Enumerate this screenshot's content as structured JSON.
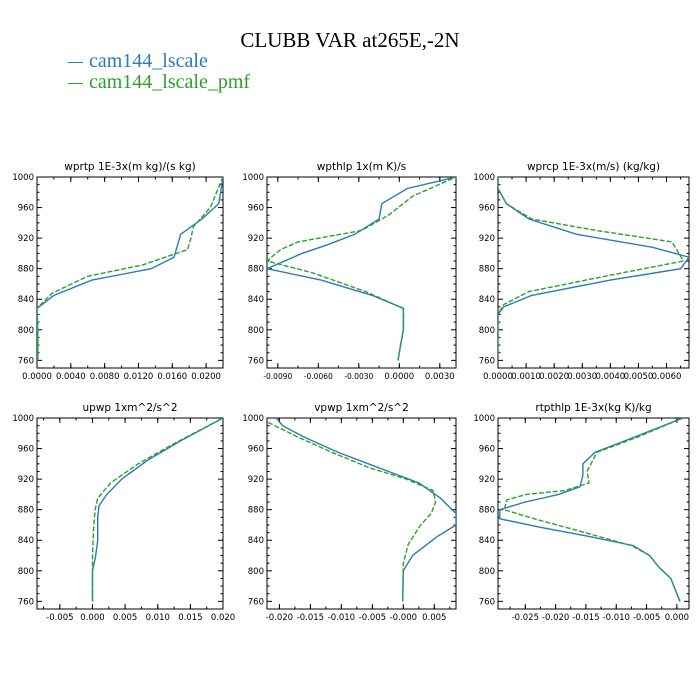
{
  "title": "CLUBB VAR at265E,-2N",
  "legend": [
    {
      "label": "cam144_lscale",
      "color": "#2b7bb9"
    },
    {
      "label": "cam144_lscale_pmf",
      "color": "#2ca02c"
    }
  ],
  "chart_data": [
    {
      "type": "line",
      "title": "wprtp   1E-3x(m kg)/(s kg)",
      "xlim": [
        0,
        0.022
      ],
      "ylim": [
        1000,
        750
      ],
      "xticks": [
        0,
        0.004,
        0.008,
        0.012,
        0.016,
        0.02
      ],
      "xtick_labels": [
        "0.0000",
        "0.0040",
        "0.0080",
        "0.0120",
        "0.0160",
        "0.0200"
      ],
      "yticks": [
        760,
        800,
        840,
        880,
        920,
        960,
        1000
      ],
      "series": [
        {
          "name": "cam144_lscale",
          "points": [
            [
              0.0001,
              760
            ],
            [
              0.0001,
              800
            ],
            [
              0,
              828
            ],
            [
              0.002,
              845
            ],
            [
              0.0065,
              865
            ],
            [
              0.0135,
              880
            ],
            [
              0.0162,
              895
            ],
            [
              0.017,
              925
            ],
            [
              0.0195,
              945
            ],
            [
              0.0215,
              965
            ],
            [
              0.022,
              1000
            ]
          ]
        },
        {
          "name": "cam144_lscale_pmf",
          "points": [
            [
              0.0001,
              760
            ],
            [
              0.0001,
              800
            ],
            [
              0,
              828
            ],
            [
              0.0018,
              848
            ],
            [
              0.006,
              870
            ],
            [
              0.0125,
              885
            ],
            [
              0.0178,
              905
            ],
            [
              0.0182,
              920
            ],
            [
              0.0185,
              935
            ],
            [
              0.0205,
              960
            ],
            [
              0.022,
              1000
            ]
          ]
        }
      ]
    },
    {
      "type": "line",
      "title": "wpthlp   1x(m K)/s",
      "xlim": [
        -0.0098,
        0.0042
      ],
      "ylim": [
        1000,
        750
      ],
      "xticks": [
        -0.009,
        -0.006,
        -0.003,
        0.0,
        0.003
      ],
      "xtick_labels": [
        "-0.0090",
        "-0.0060",
        "-0.0030",
        "0.0000",
        "0.0030"
      ],
      "yticks": [
        760,
        800,
        840,
        880,
        920,
        960,
        1000
      ],
      "series": [
        {
          "name": "cam144_lscale",
          "points": [
            [
              -0.0001,
              760
            ],
            [
              0.0001,
              780
            ],
            [
              0.0003,
              800
            ],
            [
              0.0003,
              828
            ],
            [
              -0.002,
              845
            ],
            [
              -0.0058,
              865
            ],
            [
              -0.0098,
              880
            ],
            [
              -0.0072,
              900
            ],
            [
              -0.0052,
              912
            ],
            [
              -0.0033,
              925
            ],
            [
              -0.0015,
              945
            ],
            [
              -0.0013,
              965
            ],
            [
              0.0006,
              985
            ],
            [
              0.0042,
              1000
            ]
          ]
        },
        {
          "name": "cam144_lscale_pmf",
          "points": [
            [
              -0.0001,
              760
            ],
            [
              0.0001,
              780
            ],
            [
              0.0003,
              800
            ],
            [
              0.0003,
              828
            ],
            [
              -0.0025,
              850
            ],
            [
              -0.0065,
              875
            ],
            [
              -0.0098,
              890
            ],
            [
              -0.0088,
              905
            ],
            [
              -0.0075,
              915
            ],
            [
              -0.0028,
              930
            ],
            [
              -0.0008,
              950
            ],
            [
              0.001,
              975
            ],
            [
              0.0042,
              1000
            ]
          ]
        }
      ]
    },
    {
      "type": "line",
      "title": "wprcp   1E-3x(m/s) (kg/kg)",
      "xlim": [
        0,
        0.0068
      ],
      "ylim": [
        1000,
        750
      ],
      "xticks": [
        0,
        0.001,
        0.002,
        0.003,
        0.004,
        0.005,
        0.006
      ],
      "xtick_labels": [
        "0.0000",
        "0.0010",
        "0.0020",
        "0.0030",
        "0.0040",
        "0.0050",
        "0.0060"
      ],
      "yticks": [
        760,
        800,
        840,
        880,
        920,
        960,
        1000
      ],
      "series": [
        {
          "name": "cam144_lscale",
          "points": [
            [
              0,
              760
            ],
            [
              0,
              820
            ],
            [
              0.0002,
              830
            ],
            [
              0.0012,
              845
            ],
            [
              0.004,
              865
            ],
            [
              0.0065,
              880
            ],
            [
              0.0068,
              895
            ],
            [
              0.0055,
              908
            ],
            [
              0.0028,
              925
            ],
            [
              0.0011,
              945
            ],
            [
              0.0003,
              965
            ],
            [
              0,
              985
            ],
            [
              0,
              1000
            ]
          ]
        },
        {
          "name": "cam144_lscale_pmf",
          "points": [
            [
              0,
              760
            ],
            [
              0,
              820
            ],
            [
              0.0002,
              833
            ],
            [
              0.0011,
              850
            ],
            [
              0.0038,
              870
            ],
            [
              0.0066,
              890
            ],
            [
              0.0062,
              915
            ],
            [
              0.0035,
              930
            ],
            [
              0.0012,
              945
            ],
            [
              0.0003,
              965
            ],
            [
              0,
              985
            ],
            [
              0,
              1000
            ]
          ]
        }
      ]
    },
    {
      "type": "line",
      "title": "upwp   1xm^2/s^2",
      "xlim": [
        -0.0085,
        0.02
      ],
      "ylim": [
        1000,
        750
      ],
      "xticks": [
        -0.005,
        0.0,
        0.005,
        0.01,
        0.015,
        0.02
      ],
      "xtick_labels": [
        "-0.005",
        "0.000",
        "0.005",
        "0.010",
        "0.015",
        "0.020"
      ],
      "yticks": [
        760,
        800,
        840,
        880,
        920,
        960,
        1000
      ],
      "series": [
        {
          "name": "cam144_lscale",
          "points": [
            [
              0,
              760
            ],
            [
              0,
              800
            ],
            [
              0.0005,
              820
            ],
            [
              0.0008,
              840
            ],
            [
              0.0008,
              870
            ],
            [
              0.001,
              885
            ],
            [
              0.0022,
              900
            ],
            [
              0.0045,
              920
            ],
            [
              0.0085,
              945
            ],
            [
              0.0135,
              970
            ],
            [
              0.02,
              1000
            ]
          ]
        },
        {
          "name": "cam144_lscale_pmf",
          "points": [
            [
              0,
              760
            ],
            [
              0,
              820
            ],
            [
              0.0002,
              860
            ],
            [
              0.0004,
              880
            ],
            [
              0.0008,
              895
            ],
            [
              0.0028,
              915
            ],
            [
              0.007,
              940
            ],
            [
              0.0122,
              965
            ],
            [
              0.02,
              1000
            ]
          ]
        }
      ]
    },
    {
      "type": "line",
      "title": "vpwp   1xm^2/s^2",
      "xlim": [
        -0.022,
        0.0085
      ],
      "ylim": [
        1000,
        750
      ],
      "xticks": [
        -0.02,
        -0.015,
        -0.01,
        -0.005,
        0.0,
        0.005
      ],
      "xtick_labels": [
        "-0.020",
        "-0.015",
        "-0.010",
        "-0.005",
        "-0.000",
        "0.005"
      ],
      "yticks": [
        760,
        800,
        840,
        880,
        920,
        960,
        1000
      ],
      "series": [
        {
          "name": "cam144_lscale",
          "points": [
            [
              -0.0001,
              760
            ],
            [
              0,
              800
            ],
            [
              0.0015,
              820
            ],
            [
              0.0055,
              845
            ],
            [
              0.0085,
              860
            ],
            [
              0.0085,
              875
            ],
            [
              0.006,
              895
            ],
            [
              0.0025,
              915
            ],
            [
              -0.004,
              935
            ],
            [
              -0.0105,
              955
            ],
            [
              -0.016,
              975
            ],
            [
              -0.0195,
              990
            ],
            [
              -0.0205,
              1000
            ]
          ]
        },
        {
          "name": "cam144_lscale_pmf",
          "points": [
            [
              -0.0001,
              760
            ],
            [
              0,
              810
            ],
            [
              0.0008,
              835
            ],
            [
              0.0028,
              860
            ],
            [
              0.0045,
              875
            ],
            [
              0.0052,
              890
            ],
            [
              0.0048,
              905
            ],
            [
              0.0005,
              920
            ],
            [
              -0.0055,
              935
            ],
            [
              -0.0115,
              955
            ],
            [
              -0.017,
              975
            ],
            [
              -0.022,
              995
            ]
          ]
        }
      ]
    },
    {
      "type": "line",
      "title": "rtpthlp   1E-3x(kg K)/kg",
      "xlim": [
        -0.0295,
        0.002
      ],
      "ylim": [
        1000,
        750
      ],
      "xticks": [
        -0.025,
        -0.02,
        -0.015,
        -0.01,
        -0.005,
        0.0
      ],
      "xtick_labels": [
        "-0.025",
        "-0.020",
        "-0.015",
        "-0.010",
        "-0.005",
        "0.000"
      ],
      "yticks": [
        760,
        800,
        840,
        880,
        920,
        960,
        1000
      ],
      "series": [
        {
          "name": "cam144_lscale",
          "points": [
            [
              0.0005,
              760
            ],
            [
              -0.001,
              790
            ],
            [
              -0.003,
              805
            ],
            [
              -0.0045,
              820
            ],
            [
              -0.0072,
              833
            ],
            [
              -0.0145,
              845
            ],
            [
              -0.0225,
              857
            ],
            [
              -0.0292,
              868
            ],
            [
              -0.0292,
              880
            ],
            [
              -0.025,
              890
            ],
            [
              -0.0195,
              900
            ],
            [
              -0.016,
              910
            ],
            [
              -0.0155,
              925
            ],
            [
              -0.0155,
              940
            ],
            [
              -0.0135,
              955
            ],
            [
              -0.007,
              975
            ],
            [
              0.001,
              1000
            ]
          ]
        },
        {
          "name": "cam144_lscale_pmf",
          "points": [
            [
              0.0005,
              760
            ],
            [
              -0.001,
              790
            ],
            [
              -0.003,
              805
            ],
            [
              -0.0045,
              820
            ],
            [
              -0.0075,
              833
            ],
            [
              -0.0165,
              853
            ],
            [
              -0.0235,
              868
            ],
            [
              -0.0285,
              880
            ],
            [
              -0.028,
              893
            ],
            [
              -0.0248,
              900
            ],
            [
              -0.0185,
              905
            ],
            [
              -0.0145,
              915
            ],
            [
              -0.0148,
              930
            ],
            [
              -0.0132,
              955
            ],
            [
              -0.0065,
              975
            ],
            [
              0.001,
              1000
            ]
          ]
        }
      ]
    }
  ]
}
